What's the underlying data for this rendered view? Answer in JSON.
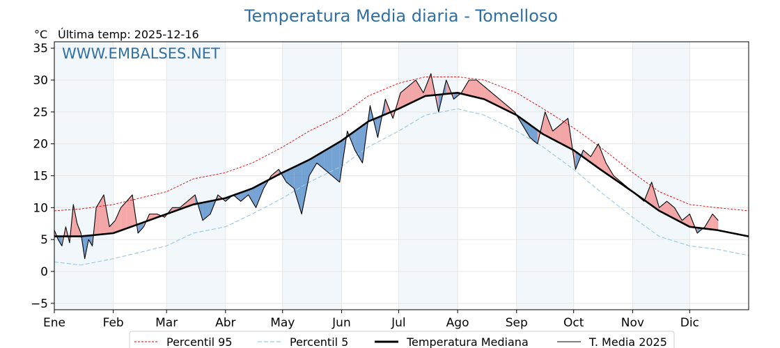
{
  "chart_data": {
    "type": "line",
    "title": "Temperatura Media diaria - Tomelloso",
    "unit_label": "°C",
    "last_temp_label": "Última temp: 2025-12-16",
    "watermark": "WWW.EMBALSES.NET",
    "months": [
      "Ene",
      "Feb",
      "Mar",
      "Abr",
      "May",
      "Jun",
      "Jul",
      "Ago",
      "Sep",
      "Oct",
      "Nov",
      "Dic"
    ],
    "month_start_days": [
      1,
      32,
      60,
      91,
      121,
      152,
      182,
      213,
      244,
      274,
      305,
      335
    ],
    "yticks": [
      35,
      30,
      25,
      20,
      15,
      10,
      5,
      0,
      -5
    ],
    "ytick_labels": [
      "35",
      "30",
      "25",
      "20",
      "15",
      "10",
      "5",
      "0",
      "−5"
    ],
    "ylim": [
      -6,
      36
    ],
    "xlim": [
      1,
      366
    ],
    "grid": true,
    "legend_position": "bottom",
    "colors": {
      "p95": "#e00000",
      "p5": "#9ecae1",
      "median": "#000000",
      "year": "#000000",
      "above": "#f28b8b",
      "below": "#4a86c5",
      "band": "#f2f7fc",
      "title": "#2f6fa3"
    },
    "series": [
      {
        "name": "Percentil 95",
        "x": [
          1,
          15,
          32,
          46,
          60,
          74,
          91,
          105,
          121,
          135,
          152,
          166,
          182,
          196,
          213,
          227,
          244,
          258,
          274,
          288,
          305,
          319,
          335,
          349,
          366
        ],
        "values": [
          9.5,
          9.8,
          10.5,
          11.5,
          12.5,
          14.5,
          15.5,
          17,
          19.5,
          22,
          24.5,
          27.5,
          29.5,
          30.5,
          30.5,
          30,
          28,
          25.5,
          22.5,
          19.5,
          15.5,
          12.5,
          10.5,
          10,
          9.5
        ]
      },
      {
        "name": "Percentil 5",
        "x": [
          1,
          15,
          32,
          46,
          60,
          74,
          91,
          105,
          121,
          135,
          152,
          166,
          182,
          196,
          213,
          227,
          244,
          258,
          274,
          288,
          305,
          319,
          335,
          349,
          366
        ],
        "values": [
          1.5,
          1,
          2,
          3,
          4,
          6,
          7,
          9,
          11.5,
          14,
          16.5,
          19.5,
          22,
          24.5,
          25.5,
          24.5,
          22,
          19.5,
          16,
          12.5,
          8.5,
          5.5,
          4,
          3.5,
          2.5
        ]
      },
      {
        "name": "Temperatura Mediana",
        "x": [
          1,
          15,
          32,
          46,
          60,
          74,
          91,
          105,
          121,
          135,
          152,
          166,
          182,
          196,
          213,
          227,
          244,
          258,
          274,
          288,
          305,
          319,
          335,
          349,
          366
        ],
        "values": [
          5.5,
          5.5,
          6,
          7.5,
          9,
          10.5,
          11.5,
          13,
          15.5,
          17.5,
          20.5,
          23.5,
          25.5,
          27.5,
          28,
          27,
          24.5,
          21.5,
          19,
          16,
          12.5,
          9.5,
          7,
          6.5,
          5.5
        ]
      },
      {
        "name": "T. Media 2025",
        "x": [
          1,
          3,
          5,
          7,
          9,
          11,
          13,
          15,
          17,
          19,
          21,
          23,
          25,
          27,
          30,
          33,
          36,
          39,
          42,
          45,
          48,
          51,
          55,
          59,
          63,
          67,
          71,
          75,
          79,
          83,
          87,
          91,
          95,
          99,
          103,
          107,
          111,
          115,
          119,
          123,
          127,
          131,
          135,
          139,
          143,
          147,
          151,
          155,
          159,
          163,
          167,
          171,
          175,
          179,
          183,
          187,
          191,
          195,
          199,
          203,
          207,
          211,
          215,
          219,
          223,
          227,
          231,
          235,
          239,
          243,
          247,
          251,
          255,
          259,
          263,
          267,
          271,
          275,
          279,
          283,
          287,
          291,
          295,
          299,
          303,
          307,
          311,
          315,
          319,
          323,
          327,
          331,
          335,
          339,
          343,
          347,
          350
        ],
        "values": [
          6.5,
          5,
          4,
          7,
          4.5,
          10.5,
          7.5,
          6,
          2,
          5,
          4,
          10,
          11,
          12,
          7,
          8,
          10,
          11,
          12,
          6,
          7,
          9,
          9,
          8.5,
          10,
          10,
          11,
          12,
          8,
          9,
          12,
          11,
          12,
          11,
          12,
          10,
          13,
          15,
          16,
          14,
          13,
          9,
          15,
          17,
          16,
          15,
          14,
          22,
          19,
          17,
          26,
          21,
          27,
          24,
          28,
          29,
          30,
          28,
          31,
          25,
          30,
          27,
          28,
          30,
          30,
          29,
          28,
          27,
          26,
          25,
          23,
          21,
          20,
          25,
          22,
          23,
          24,
          16,
          19,
          18,
          20,
          17,
          15,
          14,
          13,
          12,
          11,
          14,
          10,
          11,
          10,
          8,
          9,
          6,
          7,
          9,
          8
        ]
      }
    ]
  }
}
